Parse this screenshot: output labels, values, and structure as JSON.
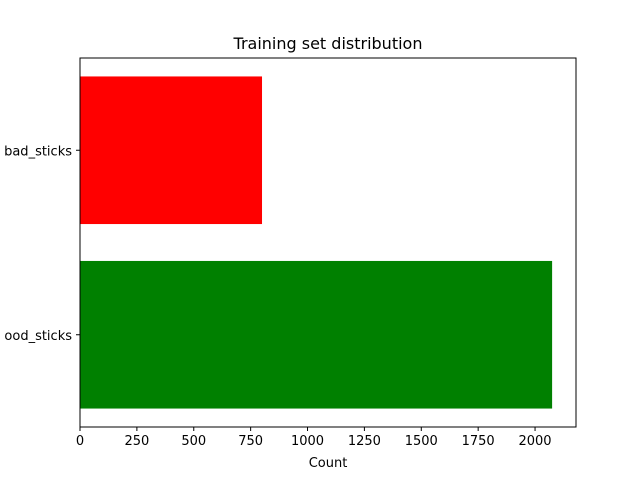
{
  "chart_data": {
    "type": "bar",
    "orientation": "horizontal",
    "title": "Training set distribution",
    "xlabel": "Count",
    "ylabel": "",
    "categories": [
      "good_sticks",
      "bad_sticks"
    ],
    "category_tick_labels": [
      "ood_sticks",
      "bad_sticks"
    ],
    "values": [
      2075,
      800
    ],
    "bar_colors": [
      "#008000",
      "#ff0000"
    ],
    "xlim": [
      0,
      2180
    ],
    "xticks": [
      0,
      250,
      500,
      750,
      1000,
      1250,
      1500,
      1750,
      2000
    ],
    "grid": false,
    "legend": "none"
  }
}
